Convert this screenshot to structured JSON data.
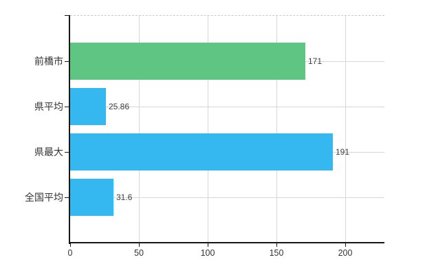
{
  "chart_data": {
    "type": "bar",
    "orientation": "horizontal",
    "title": "",
    "xlabel": "",
    "ylabel": "",
    "categories": [
      "前橋市",
      "県平均",
      "県最大",
      "全国平均"
    ],
    "values": [
      171,
      25.86,
      191,
      31.6
    ],
    "value_labels": [
      "171",
      "25.86",
      "191",
      "31.6"
    ],
    "bar_colors": [
      "#5fc583",
      "#35b8ef",
      "#35b8ef",
      "#35b8ef"
    ],
    "x_ticks": [
      0,
      50,
      100,
      150,
      200
    ],
    "x_tick_labels": [
      "0",
      "50",
      "100",
      "150",
      "200"
    ],
    "xlim": [
      0,
      228.5
    ],
    "grid": true,
    "legend": false
  },
  "colors": {
    "bar_green": "#5fc583",
    "bar_blue": "#35b8ef",
    "gridline": "#d6d6d6",
    "top_border": "#c9c9c9",
    "axis": "#161616",
    "label_text": "#333333",
    "value_text": "#3d3d3d",
    "background": "#ffffff"
  }
}
